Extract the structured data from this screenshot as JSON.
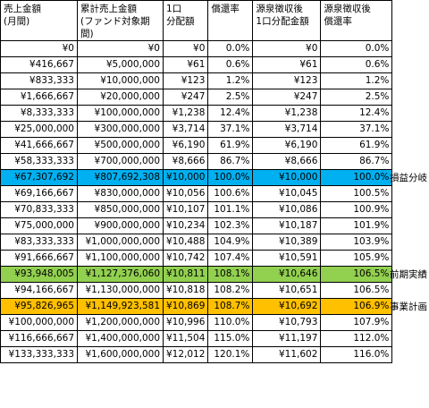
{
  "headers": [
    "売上金額\n(月間)",
    "累計売上金額\n(ファンド対象期間)",
    "1口\n分配額",
    "償還率",
    "源泉徴収後\n1口分配金額",
    "源泉徴収後\n償還率"
  ],
  "rows": [
    {
      "cells": [
        "¥0",
        "¥0",
        "¥0",
        "0.0%",
        "¥0",
        "0.0%"
      ]
    },
    {
      "cells": [
        "¥416,667",
        "¥5,000,000",
        "¥61",
        "0.6%",
        "¥61",
        "0.6%"
      ]
    },
    {
      "cells": [
        "¥833,333",
        "¥10,000,000",
        "¥123",
        "1.2%",
        "¥123",
        "1.2%"
      ]
    },
    {
      "cells": [
        "¥1,666,667",
        "¥20,000,000",
        "¥247",
        "2.5%",
        "¥247",
        "2.5%"
      ]
    },
    {
      "cells": [
        "¥8,333,333",
        "¥100,000,000",
        "¥1,238",
        "12.4%",
        "¥1,238",
        "12.4%"
      ]
    },
    {
      "cells": [
        "¥25,000,000",
        "¥300,000,000",
        "¥3,714",
        "37.1%",
        "¥3,714",
        "37.1%"
      ]
    },
    {
      "cells": [
        "¥41,666,667",
        "¥500,000,000",
        "¥6,190",
        "61.9%",
        "¥6,190",
        "61.9%"
      ]
    },
    {
      "cells": [
        "¥58,333,333",
        "¥700,000,000",
        "¥8,666",
        "86.7%",
        "¥8,666",
        "86.7%"
      ]
    },
    {
      "cells": [
        "¥67,307,692",
        "¥807,692,308",
        "¥10,000",
        "100.0%",
        "¥10,000",
        "100.0%"
      ],
      "note": "損益分岐"
    },
    {
      "cells": [
        "¥69,166,667",
        "¥830,000,000",
        "¥10,056",
        "100.6%",
        "¥10,045",
        "100.5%"
      ]
    },
    {
      "cells": [
        "¥70,833,333",
        "¥850,000,000",
        "¥10,107",
        "101.1%",
        "¥10,086",
        "100.9%"
      ]
    },
    {
      "cells": [
        "¥75,000,000",
        "¥900,000,000",
        "¥10,234",
        "102.3%",
        "¥10,187",
        "101.9%"
      ]
    },
    {
      "cells": [
        "¥83,333,333",
        "¥1,000,000,000",
        "¥10,488",
        "104.9%",
        "¥10,389",
        "103.9%"
      ]
    },
    {
      "cells": [
        "¥91,666,667",
        "¥1,100,000,000",
        "¥10,742",
        "107.4%",
        "¥10,591",
        "105.9%"
      ]
    },
    {
      "cells": [
        "¥93,948,005",
        "¥1,127,376,060",
        "¥10,811",
        "108.1%",
        "¥10,646",
        "106.5%"
      ],
      "note": "前期実績"
    },
    {
      "cells": [
        "¥94,166,667",
        "¥1,130,000,000",
        "¥10,818",
        "108.2%",
        "¥10,651",
        "106.5%"
      ]
    },
    {
      "cells": [
        "¥95,826,965",
        "¥1,149,923,581",
        "¥10,869",
        "108.7%",
        "¥10,692",
        "106.9%"
      ],
      "note": "事業計画"
    },
    {
      "cells": [
        "¥100,000,000",
        "¥1,200,000,000",
        "¥10,996",
        "110.0%",
        "¥10,793",
        "107.9%"
      ]
    },
    {
      "cells": [
        "¥116,666,667",
        "¥1,400,000,000",
        "¥11,504",
        "115.0%",
        "¥11,197",
        "112.0%"
      ]
    },
    {
      "cells": [
        "¥133,333,333",
        "¥1,600,000,000",
        "¥12,012",
        "120.1%",
        "¥11,602",
        "116.0%"
      ]
    }
  ],
  "colors": {
    "breakeven": "#00b0f0",
    "actual": "#92d050",
    "plan": "#ffc000",
    "border": "#000000"
  }
}
